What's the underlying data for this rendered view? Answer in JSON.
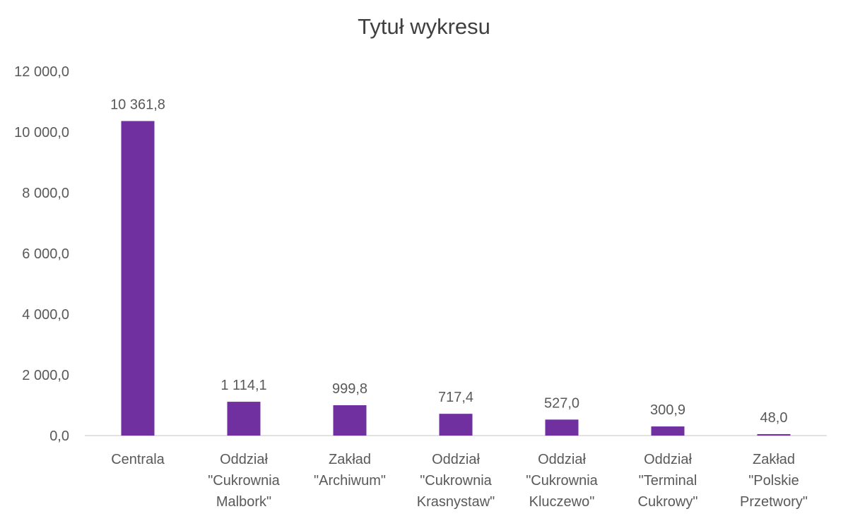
{
  "chart_data": {
    "type": "bar",
    "title": "Tytuł wykresu",
    "xlabel": "",
    "ylabel": "",
    "ylim": [
      0,
      12000
    ],
    "yticks": [
      0,
      2000,
      4000,
      6000,
      8000,
      10000,
      12000
    ],
    "ytick_labels": [
      "0,0",
      "2 000,0",
      "4 000,0",
      "6 000,0",
      "8 000,0",
      "10 000,0",
      "12 000,0"
    ],
    "categories": [
      [
        "Centrala"
      ],
      [
        "Oddział",
        "\"Cukrownia",
        "Malbork\""
      ],
      [
        "Zakład",
        "\"Archiwum\""
      ],
      [
        "Oddział",
        "\"Cukrownia",
        "Krasnystaw\""
      ],
      [
        "Oddział",
        "\"Cukrownia",
        "Kluczewo\""
      ],
      [
        "Oddział",
        "\"Terminal",
        "Cukrowy\""
      ],
      [
        "Zakład",
        "\"Polskie",
        "Przetwory\""
      ]
    ],
    "values": [
      10361.8,
      1114.1,
      999.8,
      717.4,
      527.0,
      300.9,
      48.0
    ],
    "data_labels": [
      "10 361,8",
      "1 114,1",
      "999,8",
      "717,4",
      "527,0",
      "300,9",
      "48,0"
    ],
    "grid": false,
    "legend": "none",
    "colors": {
      "bar": "#7030A0",
      "text": "#595959",
      "title": "#404040",
      "axis": "#D9D9D9"
    }
  }
}
